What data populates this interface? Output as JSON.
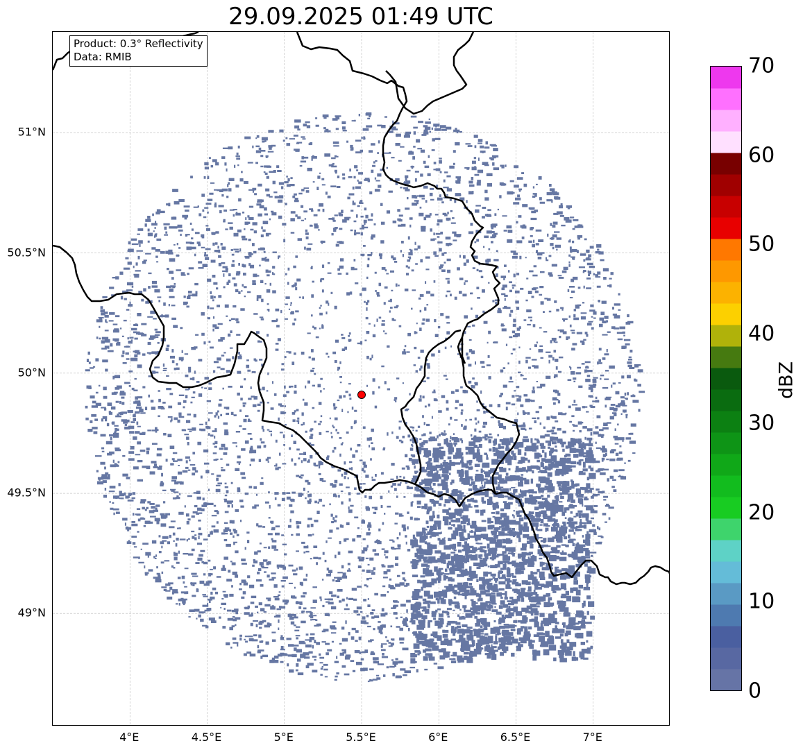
{
  "title": "29.09.2025 01:49 UTC",
  "info_box": {
    "product": "Product: 0.3° Reflectivity",
    "data": "Data: RMIB"
  },
  "map": {
    "lon_range": [
      3.5,
      7.5
    ],
    "lat_range": [
      48.53,
      51.42
    ],
    "radar_site": {
      "lon": 5.5,
      "lat": 49.91,
      "color": "#ff0000"
    },
    "echo_color": "#6677a3",
    "border_color": "#000000",
    "lat_ticks": [
      {
        "value": 51.0,
        "label": "51°N"
      },
      {
        "value": 50.5,
        "label": "50.5°N"
      },
      {
        "value": 50.0,
        "label": "50°N"
      },
      {
        "value": 49.5,
        "label": "49.5°N"
      },
      {
        "value": 49.0,
        "label": "49°N"
      }
    ],
    "lon_ticks": [
      {
        "value": 4.0,
        "label": "4°E"
      },
      {
        "value": 4.5,
        "label": "4.5°E"
      },
      {
        "value": 5.0,
        "label": "5°E"
      },
      {
        "value": 5.5,
        "label": "5.5°E"
      },
      {
        "value": 6.0,
        "label": "6°E"
      },
      {
        "value": 6.5,
        "label": "6.5°E"
      },
      {
        "value": 7.0,
        "label": "7°E"
      }
    ]
  },
  "colorbar": {
    "label": "dBZ",
    "min": 0,
    "max": 70,
    "ticks": [
      "0",
      "10",
      "20",
      "30",
      "40",
      "50",
      "60",
      "70"
    ],
    "colors": [
      "#6674a6",
      "#5868a2",
      "#4a5fa0",
      "#4e7ab0",
      "#5a9ac4",
      "#64bcd8",
      "#5ed2c6",
      "#3ed46c",
      "#18cc22",
      "#12bc1e",
      "#10a818",
      "#0e9416",
      "#0c8012",
      "#0a6c10",
      "#0a5a0e",
      "#467a10",
      "#b0b20a",
      "#fcd000",
      "#fcb200",
      "#fe9800",
      "#ff7800",
      "#e80000",
      "#c80000",
      "#a00000",
      "#780000",
      "#ffe0ff",
      "#ffb0ff",
      "#ff70ff",
      "#ee38ee"
    ]
  }
}
